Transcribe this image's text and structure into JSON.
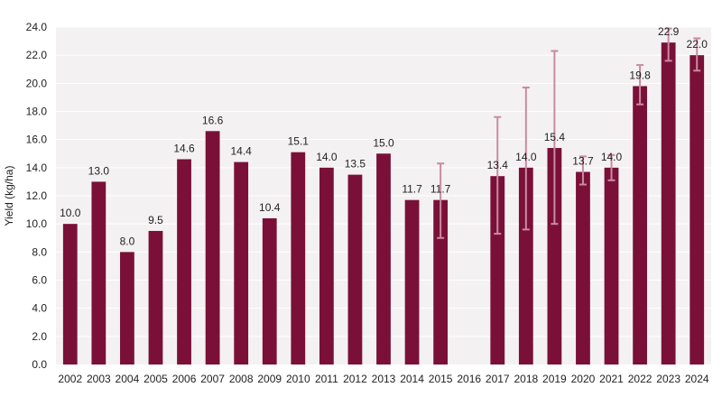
{
  "chart_data": {
    "type": "bar",
    "title": "",
    "xlabel": "",
    "ylabel": "Yield (kg/ha)",
    "ylim": [
      0,
      24
    ],
    "ytick_step": 2,
    "ytick_decimals": 1,
    "grid": true,
    "legend": "none",
    "colors": {
      "bar": "#7a1038",
      "error_bar": "#c98ba0",
      "plot_background": "#f4f1f2",
      "gridline": "#ffffff"
    },
    "categories": [
      "2002",
      "2003",
      "2004",
      "2005",
      "2006",
      "2007",
      "2008",
      "2009",
      "2010",
      "2011",
      "2012",
      "2013",
      "2014",
      "2015",
      "2016",
      "2017",
      "2018",
      "2019",
      "2020",
      "2021",
      "2022",
      "2023",
      "2024"
    ],
    "values": [
      10.0,
      13.0,
      8.0,
      9.5,
      14.6,
      16.6,
      14.4,
      10.4,
      15.1,
      14.0,
      13.5,
      15.0,
      11.7,
      11.7,
      null,
      13.4,
      14.0,
      15.4,
      13.7,
      14.0,
      19.8,
      22.9,
      22.0
    ],
    "data_labels": [
      "10.0",
      "13.0",
      "8.0",
      "9.5",
      "14.6",
      "16.6",
      "14.4",
      "10.4",
      "15.1",
      "14.0",
      "13.5",
      "15.0",
      "11.7",
      "11.7",
      "",
      "13.4",
      "14.0",
      "15.4",
      "13.7",
      "14.0",
      "19.8",
      "22.9",
      "22.0"
    ],
    "error_low": [
      null,
      null,
      null,
      null,
      null,
      null,
      null,
      null,
      null,
      null,
      null,
      null,
      null,
      9.0,
      null,
      9.3,
      9.6,
      10.0,
      12.8,
      13.1,
      18.5,
      21.6,
      20.9
    ],
    "error_high": [
      null,
      null,
      null,
      null,
      null,
      null,
      null,
      null,
      null,
      null,
      null,
      null,
      null,
      14.3,
      null,
      17.6,
      19.7,
      22.3,
      14.8,
      14.9,
      21.3,
      23.9,
      23.2
    ]
  }
}
